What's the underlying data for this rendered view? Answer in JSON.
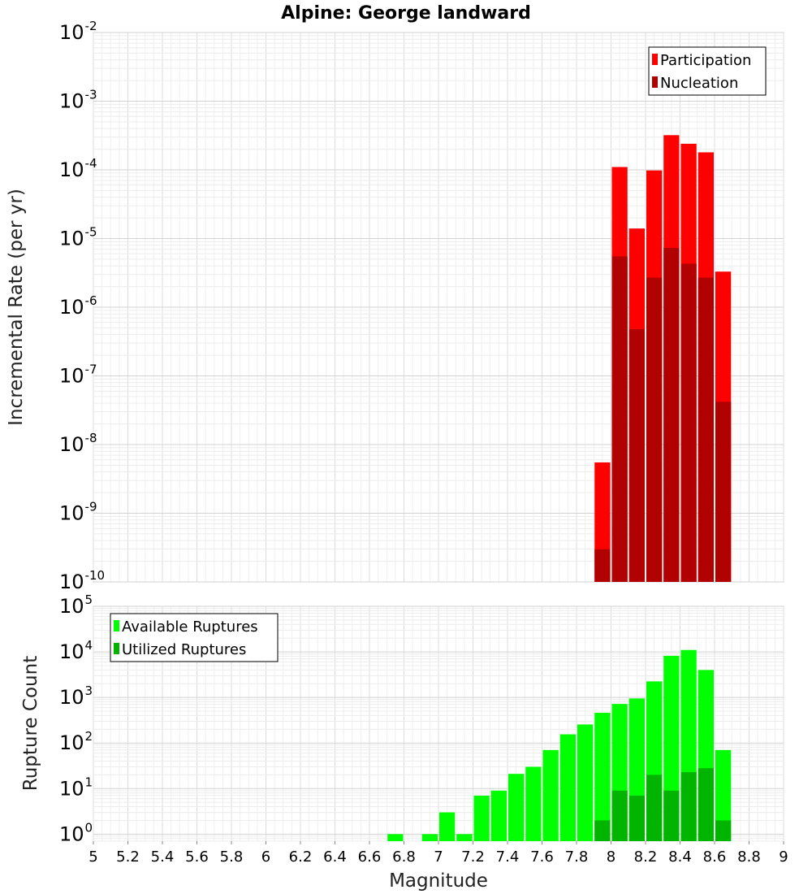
{
  "figure": {
    "title": "Alpine: George landward",
    "xlabel": "Magnitude",
    "x_ticks": [
      "5",
      "5.2",
      "5.4",
      "5.6",
      "5.8",
      "6",
      "6.2",
      "6.4",
      "6.6",
      "6.8",
      "7",
      "7.2",
      "7.4",
      "7.6",
      "7.8",
      "8",
      "8.2",
      "8.4",
      "8.6",
      "8.8",
      "9"
    ]
  },
  "chart_data": [
    {
      "type": "bar",
      "title": "Alpine: George landward",
      "xlabel": "Magnitude",
      "ylabel": "Incremental Rate (per yr)",
      "yscale": "log",
      "xlim": [
        5,
        9
      ],
      "ylim": [
        1e-10,
        0.01
      ],
      "grid": true,
      "legend_position": "top-right",
      "y_tick_exponents": [
        "-10",
        "-9",
        "-8",
        "-7",
        "-6",
        "-5",
        "-4",
        "-3",
        "-2"
      ],
      "bin_width": 0.1,
      "x": [
        7.95,
        8.05,
        8.15,
        8.25,
        8.35,
        8.45,
        8.55,
        8.65
      ],
      "series": [
        {
          "name": "Participation",
          "color": "#ff0000",
          "values": [
            5.5e-09,
            0.00011,
            1.4e-05,
            9.8e-05,
            0.00032,
            0.00024,
            0.00018,
            3.3e-06
          ]
        },
        {
          "name": "Nucleation",
          "color": "#b00000",
          "values": [
            3e-10,
            5.5e-06,
            4.8e-07,
            2.7e-06,
            7.3e-06,
            4.3e-06,
            2.7e-06,
            4.2e-08
          ]
        }
      ]
    },
    {
      "type": "bar",
      "xlabel": "Magnitude",
      "ylabel": "Rupture Count",
      "yscale": "log",
      "xlim": [
        5,
        9
      ],
      "ylim": [
        0.7,
        100000.0
      ],
      "grid": true,
      "legend_position": "top-left",
      "y_tick_exponents": [
        "0",
        "1",
        "2",
        "3",
        "4",
        "5"
      ],
      "bin_width": 0.1,
      "x": [
        6.75,
        6.85,
        6.95,
        7.05,
        7.15,
        7.25,
        7.35,
        7.45,
        7.55,
        7.65,
        7.75,
        7.85,
        7.95,
        8.05,
        8.15,
        8.25,
        8.35,
        8.45,
        8.55,
        8.65
      ],
      "series": [
        {
          "name": "Available Ruptures",
          "color": "#00ff00",
          "values": [
            1,
            0,
            1,
            3,
            1,
            7,
            9,
            21,
            30,
            70,
            155,
            255,
            460,
            720,
            950,
            2250,
            8200,
            11000,
            4000,
            70
          ]
        },
        {
          "name": "Utilized Ruptures",
          "color": "#00b400",
          "values": [
            0,
            0,
            0,
            0,
            0,
            0,
            0,
            0,
            0,
            0,
            0,
            0,
            2,
            9,
            7,
            20,
            9,
            23,
            28,
            2
          ]
        }
      ]
    }
  ]
}
